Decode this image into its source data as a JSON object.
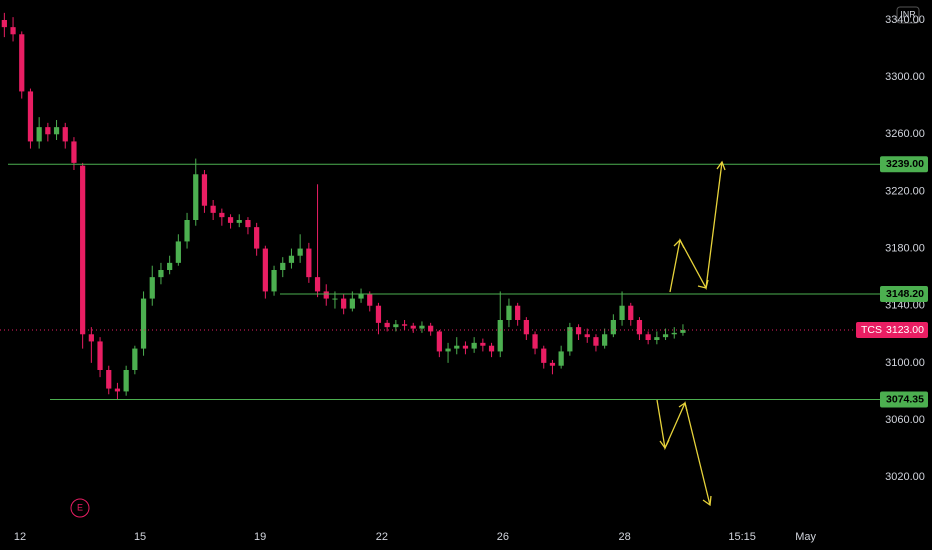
{
  "chart_data": {
    "type": "candlestick",
    "currency": "INR",
    "earnings_marker": "E",
    "up_color": "#4caf50",
    "down_color": "#e91e63",
    "ylim": [
      2990,
      3354
    ],
    "yticks": [
      {
        "value": 3020,
        "label": "3020.00"
      },
      {
        "value": 3060,
        "label": "3060.00"
      },
      {
        "value": 3100,
        "label": "3100.00"
      },
      {
        "value": 3140,
        "label": "3140.00"
      },
      {
        "value": 3180,
        "label": "3180.00"
      },
      {
        "value": 3220,
        "label": "3220.00"
      },
      {
        "value": 3260,
        "label": "3260.00"
      },
      {
        "value": 3300,
        "label": "3300.00"
      },
      {
        "value": 3340,
        "label": "3340.00"
      }
    ],
    "xlim": [
      -0.5,
      99.5
    ],
    "xticks": [
      {
        "value": 1.8,
        "label": "12"
      },
      {
        "value": 15.6,
        "label": "15"
      },
      {
        "value": 29.4,
        "label": "19"
      },
      {
        "value": 43.4,
        "label": "22"
      },
      {
        "value": 57.3,
        "label": "26"
      },
      {
        "value": 71.3,
        "label": "28"
      },
      {
        "value": 84.8,
        "label": "15:15"
      },
      {
        "value": 92.1,
        "label": "May"
      }
    ],
    "grid": false,
    "open": [
      3340,
      3335,
      3330,
      3290,
      3255,
      3265,
      3260,
      3265,
      3255,
      3238,
      3120,
      3115,
      3095,
      3082,
      3080,
      3095,
      3110,
      3145,
      3160,
      3165,
      3170,
      3185,
      3200,
      3232,
      3210,
      3205,
      3202,
      3198,
      3200,
      3195,
      3180,
      3150,
      3165,
      3170,
      3175,
      3180,
      3160,
      3150,
      3145,
      3145,
      3138,
      3145,
      3148,
      3140,
      3128,
      3125,
      3127,
      3126,
      3124,
      3126,
      3122,
      3108,
      3110,
      3112,
      3110,
      3114,
      3112,
      3108,
      3130,
      3140,
      3130,
      3120,
      3110,
      3100,
      3098,
      3108,
      3125,
      3120,
      3118,
      3112,
      3120,
      3130,
      3140,
      3130,
      3120,
      3116,
      3118,
      3120,
      3121
    ],
    "high": [
      3345,
      3342,
      3332,
      3292,
      3272,
      3268,
      3270,
      3268,
      3258,
      3240,
      3125,
      3118,
      3098,
      3086,
      3098,
      3112,
      3150,
      3168,
      3170,
      3175,
      3190,
      3205,
      3243,
      3235,
      3214,
      3208,
      3204,
      3204,
      3202,
      3198,
      3182,
      3168,
      3174,
      3180,
      3190,
      3184,
      3225,
      3155,
      3150,
      3148,
      3150,
      3152,
      3150,
      3142,
      3130,
      3130,
      3130,
      3128,
      3129,
      3128,
      3123,
      3114,
      3118,
      3115,
      3118,
      3117,
      3114,
      3150,
      3145,
      3142,
      3132,
      3122,
      3112,
      3102,
      3112,
      3128,
      3127,
      3124,
      3120,
      3124,
      3134,
      3150,
      3142,
      3132,
      3122,
      3122,
      3124,
      3125,
      3127
    ],
    "low": [
      3328,
      3325,
      3285,
      3250,
      3250,
      3255,
      3256,
      3250,
      3235,
      3110,
      3100,
      3090,
      3078,
      3074,
      3077,
      3092,
      3105,
      3140,
      3155,
      3162,
      3168,
      3180,
      3196,
      3205,
      3200,
      3196,
      3194,
      3195,
      3190,
      3175,
      3145,
      3147,
      3160,
      3166,
      3170,
      3156,
      3146,
      3140,
      3138,
      3134,
      3136,
      3142,
      3136,
      3120,
      3122,
      3122,
      3123,
      3121,
      3121,
      3119,
      3104,
      3100,
      3106,
      3106,
      3107,
      3108,
      3104,
      3104,
      3125,
      3126,
      3116,
      3106,
      3096,
      3092,
      3096,
      3105,
      3116,
      3114,
      3108,
      3110,
      3118,
      3126,
      3126,
      3116,
      3113,
      3113,
      3116,
      3117,
      3119
    ],
    "close": [
      3335,
      3330,
      3290,
      3255,
      3265,
      3260,
      3265,
      3255,
      3240,
      3120,
      3115,
      3095,
      3082,
      3080,
      3095,
      3110,
      3145,
      3160,
      3165,
      3170,
      3185,
      3200,
      3232,
      3210,
      3205,
      3202,
      3198,
      3200,
      3195,
      3180,
      3150,
      3165,
      3170,
      3175,
      3180,
      3160,
      3150,
      3145,
      3145,
      3138,
      3145,
      3148,
      3140,
      3128,
      3125,
      3127,
      3126,
      3124,
      3126,
      3122,
      3108,
      3110,
      3112,
      3110,
      3114,
      3112,
      3108,
      3130,
      3140,
      3130,
      3120,
      3110,
      3100,
      3098,
      3108,
      3125,
      3120,
      3118,
      3112,
      3120,
      3130,
      3140,
      3130,
      3120,
      3116,
      3118,
      3120,
      3121,
      3123
    ],
    "levels": [
      {
        "value": 3239,
        "label": "3239.00"
      },
      {
        "value": 3148.2,
        "label": "3148.20"
      },
      {
        "value": 3074.35,
        "label": "3074.35"
      }
    ],
    "level_color": "#4caf50",
    "last_price": {
      "name": "TCS",
      "value": 3123,
      "label": "3123.00",
      "color": "#e91e63"
    }
  }
}
